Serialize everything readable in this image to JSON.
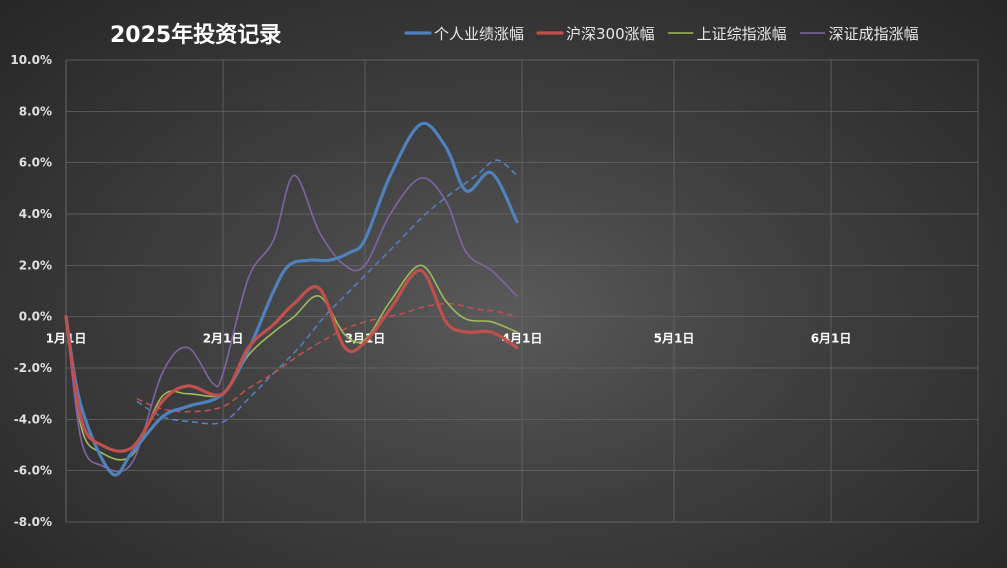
{
  "chart_data": {
    "type": "line",
    "title": "2025年投资记录",
    "xlabel": "",
    "ylabel": "",
    "ylim": [
      -0.08,
      0.1
    ],
    "y_ticks": [
      "10.0%",
      "8.0%",
      "6.0%",
      "4.0%",
      "2.0%",
      "0.0%",
      "-2.0%",
      "-4.0%",
      "-6.0%",
      "-8.0%"
    ],
    "y_tick_values": [
      0.1,
      0.08,
      0.06,
      0.04,
      0.02,
      0.0,
      -0.02,
      -0.04,
      -0.06,
      -0.08
    ],
    "x_range": [
      "2025-01-01",
      "2025-06-30"
    ],
    "x_ticks": [
      "1月1日",
      "2月1日",
      "3月1日",
      "4月1日",
      "5月1日",
      "6月1日"
    ],
    "x_tick_dates": [
      "2025-01-01",
      "2025-02-01",
      "2025-03-01",
      "2025-04-01",
      "2025-05-01",
      "2025-06-01"
    ],
    "grid": true,
    "legend_position": "top-right",
    "series": [
      {
        "name": "个人业绩涨幅",
        "color": "#4f81bd",
        "width": 3.2,
        "x": [
          "2025-01-01",
          "2025-01-04",
          "2025-01-10",
          "2025-01-14",
          "2025-01-20",
          "2025-01-25",
          "2025-02-01",
          "2025-02-06",
          "2025-02-11",
          "2025-02-14",
          "2025-02-18",
          "2025-02-22",
          "2025-02-26",
          "2025-03-01",
          "2025-03-06",
          "2025-03-12",
          "2025-03-17",
          "2025-03-21",
          "2025-03-26",
          "2025-03-31"
        ],
        "values": [
          0.0,
          -0.035,
          -0.061,
          -0.053,
          -0.039,
          -0.035,
          -0.03,
          -0.013,
          0.01,
          0.02,
          0.022,
          0.022,
          0.025,
          0.03,
          0.055,
          0.075,
          0.066,
          0.049,
          0.056,
          0.037
        ]
      },
      {
        "name": "沪深300涨幅",
        "color": "#c0504d",
        "width": 3.2,
        "x": [
          "2025-01-01",
          "2025-01-04",
          "2025-01-08",
          "2025-01-14",
          "2025-01-20",
          "2025-01-25",
          "2025-02-01",
          "2025-02-06",
          "2025-02-11",
          "2025-02-15",
          "2025-02-20",
          "2025-02-25",
          "2025-03-01",
          "2025-03-06",
          "2025-03-12",
          "2025-03-17",
          "2025-03-21",
          "2025-03-26",
          "2025-03-31"
        ],
        "values": [
          0.0,
          -0.04,
          -0.05,
          -0.051,
          -0.033,
          -0.027,
          -0.03,
          -0.012,
          -0.003,
          0.005,
          0.011,
          -0.012,
          -0.01,
          0.003,
          0.018,
          -0.002,
          -0.006,
          -0.006,
          -0.012
        ]
      },
      {
        "name": "上证综指涨幅",
        "color": "#9bbb59",
        "width": 1.6,
        "x": [
          "2025-01-01",
          "2025-01-04",
          "2025-01-08",
          "2025-01-14",
          "2025-01-20",
          "2025-01-25",
          "2025-02-01",
          "2025-02-06",
          "2025-02-11",
          "2025-02-15",
          "2025-02-20",
          "2025-02-25",
          "2025-03-01",
          "2025-03-06",
          "2025-03-12",
          "2025-03-17",
          "2025-03-21",
          "2025-03-26",
          "2025-03-31"
        ],
        "values": [
          0.0,
          -0.043,
          -0.053,
          -0.054,
          -0.031,
          -0.03,
          -0.03,
          -0.015,
          -0.006,
          0.0,
          0.008,
          -0.007,
          -0.009,
          0.006,
          0.02,
          0.006,
          -0.001,
          -0.002,
          -0.006
        ]
      },
      {
        "name": "深证成指涨幅",
        "color": "#8064a2",
        "width": 1.6,
        "x": [
          "2025-01-01",
          "2025-01-04",
          "2025-01-08",
          "2025-01-14",
          "2025-01-20",
          "2025-01-25",
          "2025-01-30",
          "2025-02-01",
          "2025-02-06",
          "2025-02-11",
          "2025-02-15",
          "2025-02-20",
          "2025-02-25",
          "2025-03-01",
          "2025-03-06",
          "2025-03-12",
          "2025-03-17",
          "2025-03-21",
          "2025-03-26",
          "2025-03-31"
        ],
        "values": [
          0.0,
          -0.048,
          -0.058,
          -0.057,
          -0.022,
          -0.012,
          -0.026,
          -0.022,
          0.015,
          0.03,
          0.055,
          0.033,
          0.02,
          0.02,
          0.04,
          0.054,
          0.045,
          0.025,
          0.018,
          0.008
        ]
      }
    ],
    "trendlines": [
      {
        "series": "个人业绩涨幅",
        "color": "#4f81bd",
        "style": "dashed",
        "x": [
          "2025-01-15",
          "2025-01-20",
          "2025-01-26",
          "2025-02-01",
          "2025-02-06",
          "2025-02-11",
          "2025-02-16",
          "2025-02-21",
          "2025-02-26",
          "2025-03-03",
          "2025-03-08",
          "2025-03-13",
          "2025-03-18",
          "2025-03-23",
          "2025-03-27",
          "2025-03-31"
        ],
        "values": [
          -0.033,
          -0.039,
          -0.041,
          -0.041,
          -0.032,
          -0.022,
          -0.012,
          0.0,
          0.01,
          0.02,
          0.03,
          0.04,
          0.048,
          0.055,
          0.061,
          0.055
        ]
      },
      {
        "series": "沪深300涨幅",
        "color": "#c0504d",
        "style": "dashed",
        "x": [
          "2025-01-15",
          "2025-01-20",
          "2025-01-26",
          "2025-02-01",
          "2025-02-06",
          "2025-02-11",
          "2025-02-16",
          "2025-02-21",
          "2025-02-26",
          "2025-03-03",
          "2025-03-08",
          "2025-03-13",
          "2025-03-18",
          "2025-03-23",
          "2025-03-27",
          "2025-03-31"
        ],
        "values": [
          -0.032,
          -0.036,
          -0.037,
          -0.035,
          -0.028,
          -0.022,
          -0.015,
          -0.009,
          -0.004,
          -0.001,
          0.001,
          0.004,
          0.005,
          0.003,
          0.002,
          0.0
        ]
      }
    ]
  }
}
